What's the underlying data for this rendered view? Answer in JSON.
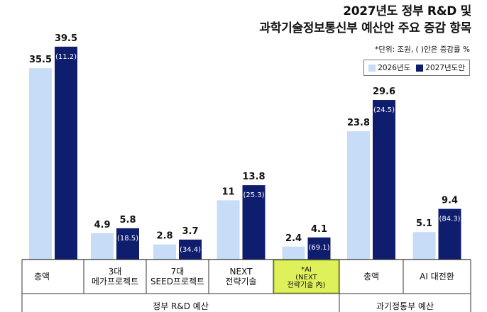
{
  "title": {
    "line1": "2027년도 정부 R&D 및",
    "line2": "과학기술정보통신부 예산안 주요 증감 항목"
  },
  "unit_note": "*단위: 조원, ( )안은 증감률 %",
  "colors": {
    "series_2026": "#c6dcf7",
    "series_2027": "#0f1d6e",
    "ai_highlight": "#dff15a",
    "ai_highlight_border": "#9cb82a"
  },
  "chart_data": {
    "type": "bar",
    "title": "2027년도 정부 R&D 및 과학기술정보통신부 예산안 주요 증감 항목",
    "unit": "조원",
    "categories": [
      "총액",
      "3대\n메가프로젝트",
      "7대\nSEED프로젝트",
      "NEXT\n전략기술",
      "*AI\n(NEXT\n전략기술 內)",
      "총액",
      "AI 대전환"
    ],
    "groups": [
      {
        "label": "정부 R&D 예산",
        "categories": [
          0,
          1,
          2,
          3,
          4
        ]
      },
      {
        "label": "과기정통부 예산",
        "categories": [
          5,
          6
        ]
      }
    ],
    "series": [
      {
        "name": "2026년도",
        "values": [
          35.5,
          4.9,
          2.8,
          11,
          2.4,
          23.8,
          5.1
        ]
      },
      {
        "name": "2027년도안",
        "values": [
          39.5,
          5.8,
          3.7,
          13.8,
          4.1,
          29.6,
          9.4
        ]
      }
    ],
    "value_labels_2026": [
      "35.5",
      "4.9",
      "2.8",
      "11",
      "2.4",
      "23.8",
      "5.1"
    ],
    "value_labels_2027": [
      "39.5",
      "5.8",
      "3.7",
      "13.8",
      "4.1",
      "29.6",
      "9.4"
    ],
    "change_rate_labels": [
      "(11.2)",
      "(18.5)",
      "(34.4)",
      "(25.3)",
      "(69.1)",
      "(24.5)",
      "(84.3)"
    ],
    "highlight_category_index": 4,
    "legend_position": "top-right"
  }
}
